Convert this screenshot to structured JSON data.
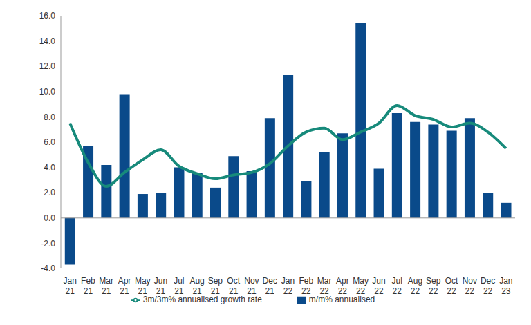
{
  "chart_data": {
    "type": "bar",
    "categories": [
      "Jan 21",
      "Feb 21",
      "Mar 21",
      "Apr 21",
      "May 21",
      "Jun 21",
      "Jul 21",
      "Aug 21",
      "Sep 21",
      "Oct 21",
      "Nov 21",
      "Dec 21",
      "Jan 22",
      "Feb 22",
      "Mar 22",
      "Apr 22",
      "May 22",
      "Jun 22",
      "Jul 22",
      "Aug 22",
      "Sep 22",
      "Oct 22",
      "Nov 22",
      "Dec 22",
      "Jan 23"
    ],
    "series": [
      {
        "name": "m/m% annualised",
        "type": "bar",
        "color": "#0a4a8a",
        "values": [
          -3.7,
          5.7,
          4.2,
          9.8,
          1.9,
          2.0,
          4.0,
          3.6,
          2.4,
          4.9,
          3.7,
          7.9,
          11.3,
          2.9,
          5.2,
          6.7,
          15.4,
          3.9,
          8.3,
          7.6,
          7.4,
          6.9,
          7.9,
          2.0,
          1.2
        ]
      },
      {
        "name": "3m/3m% annualised growth rate",
        "type": "line",
        "color": "#178a7b",
        "marker": "none",
        "line_style": "solid",
        "values": [
          7.5,
          4.4,
          2.5,
          3.6,
          4.6,
          5.4,
          4.1,
          3.5,
          3.1,
          3.4,
          3.6,
          4.3,
          5.7,
          6.8,
          7.1,
          6.2,
          6.8,
          7.5,
          8.9,
          8.1,
          7.8,
          7.2,
          7.5,
          6.8,
          5.5
        ]
      }
    ],
    "ylim": [
      -4,
      16
    ],
    "yticks": [
      {
        "value": -4,
        "label": "-4.0"
      },
      {
        "value": -2,
        "label": "-2.0"
      },
      {
        "value": 0,
        "label": "0.0"
      },
      {
        "value": 2,
        "label": "2.0"
      },
      {
        "value": 4,
        "label": "4.0"
      },
      {
        "value": 6,
        "label": "6.0"
      },
      {
        "value": 8,
        "label": "8.0"
      },
      {
        "value": 10,
        "label": "10.0"
      },
      {
        "value": 12,
        "label": "12.0"
      },
      {
        "value": 14,
        "label": "14.0"
      },
      {
        "value": 16,
        "label": "16.0"
      }
    ],
    "grid": false,
    "legend": "bottom"
  }
}
